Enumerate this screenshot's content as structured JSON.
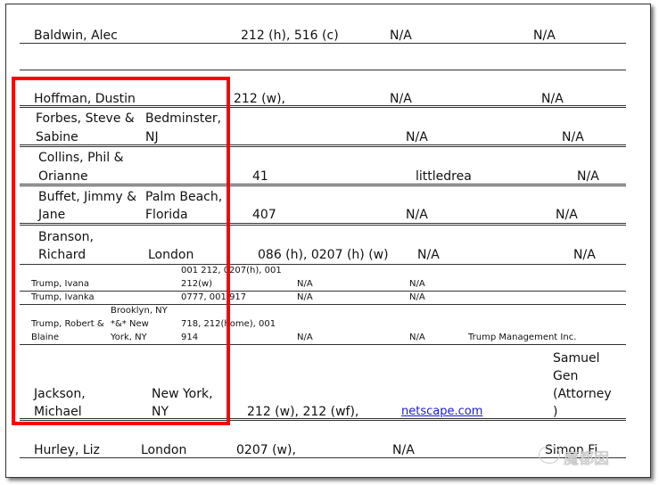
{
  "rows": [
    {
      "name": [
        "Baldwin, Alec"
      ],
      "phone": [
        "212 (h), 516 (c)"
      ],
      "c1": "N/A",
      "c2": "N/A"
    },
    {
      "name": [
        "Hoffman, Dustin"
      ],
      "phone": [
        "212 (w),"
      ],
      "c1": "N/A",
      "c2": "N/A"
    },
    {
      "name": [
        "Forbes, Steve &",
        "Sabine"
      ],
      "city": [
        "Bedminster,",
        "NJ"
      ],
      "c1": "N/A",
      "c2": "N/A"
    },
    {
      "name": [
        "Collins, Phil &",
        "Orianne"
      ],
      "phone": [
        "41"
      ],
      "c1": "littledrea",
      "c2": "N/A"
    },
    {
      "name": [
        "Buffet, Jimmy &",
        "Jane"
      ],
      "city": [
        "Palm Beach,",
        "Florida"
      ],
      "phone": [
        "407"
      ],
      "c1": "N/A",
      "c2": "N/A"
    },
    {
      "name": [
        "Branson,",
        "Richard"
      ],
      "city": [
        "London"
      ],
      "phone": [
        "086 (h), 0207 (h) (w)"
      ],
      "c1": "N/A",
      "c2": "N/A"
    },
    {
      "name": [
        "Trump, Ivana"
      ],
      "phone": [
        "001 212, 0207(h), 001",
        "212(w)"
      ],
      "c1": "N/A",
      "c2": "N/A"
    },
    {
      "name": [
        "Trump, Ivanka"
      ],
      "phone": [
        "0777, 001 917"
      ],
      "c1": "N/A",
      "c2": "N/A"
    },
    {
      "name": [
        "Trump, Robert &",
        "Blaine"
      ],
      "city": [
        "Brooklyn, NY",
        "*&* New",
        "York, NY"
      ],
      "phone": [
        "718, 212(home), 001",
        "914"
      ],
      "c1": "N/A",
      "c2": "N/A",
      "c3": "Trump Management Inc."
    },
    {
      "name": [
        "Jackson,",
        "Michael"
      ],
      "city": [
        "New York,",
        "NY"
      ],
      "phone": [
        "212 (w), 212 (wf),"
      ],
      "c1": "netscape.com",
      "c3": [
        "Samuel",
        "Gen",
        "(Attorney",
        ")"
      ]
    },
    {
      "name": [
        "Hurley, Liz"
      ],
      "city": [
        "London"
      ],
      "phone": [
        "0207 (w),"
      ],
      "c1": "N/A",
      "c3": "Simon Fi"
    }
  ],
  "highlight_color": "#ff0000",
  "link_color": "#1a1adb",
  "watermark": "魔都囡"
}
